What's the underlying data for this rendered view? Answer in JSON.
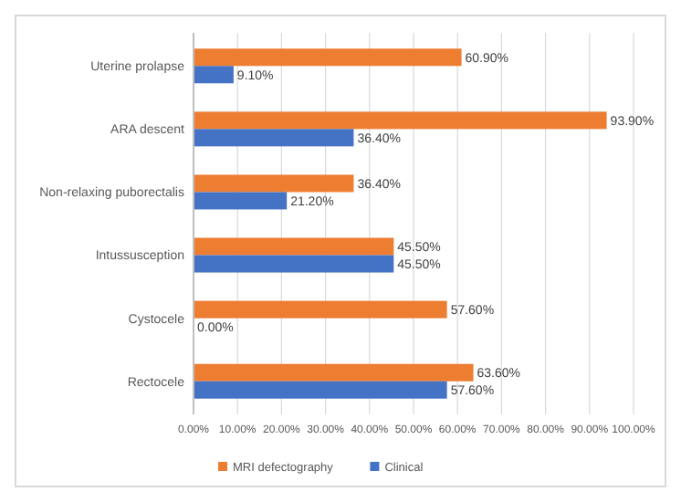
{
  "chart_data": {
    "type": "bar",
    "orientation": "horizontal",
    "categories": [
      "Uterine prolapse",
      "ARA descent",
      "Non-relaxing puborectalis",
      "Intussusception",
      "Cystocele",
      "Rectocele"
    ],
    "series": [
      {
        "name": "MRI defectography",
        "color": "#ed7d31",
        "values": [
          60.9,
          93.9,
          36.4,
          45.5,
          57.6,
          63.6
        ],
        "value_labels": [
          "60.90%",
          "93.90%",
          "36.40%",
          "45.50%",
          "57.60%",
          "63.60%"
        ]
      },
      {
        "name": "Clinical",
        "color": "#4472c4",
        "values": [
          9.1,
          36.4,
          21.2,
          45.5,
          0,
          57.6
        ],
        "value_labels": [
          "9.10%",
          "36.40%",
          "21.20%",
          "45.50%",
          "0.00%",
          "57.60%"
        ]
      }
    ],
    "xlim": [
      0,
      100
    ],
    "xticks": [
      {
        "value": 0,
        "label": "0.00%"
      },
      {
        "value": 10,
        "label": "10.00%"
      },
      {
        "value": 20,
        "label": "20.00%"
      },
      {
        "value": 30,
        "label": "30.00%"
      },
      {
        "value": 40,
        "label": "40.00%"
      },
      {
        "value": 50,
        "label": "50.00%"
      },
      {
        "value": 60,
        "label": "60.00%"
      },
      {
        "value": 70,
        "label": "70.00%"
      },
      {
        "value": 80,
        "label": "80.00%"
      },
      {
        "value": 90,
        "label": "90.00%"
      },
      {
        "value": 100,
        "label": "100.00%"
      }
    ],
    "grid": "x",
    "legend": "bottom"
  }
}
